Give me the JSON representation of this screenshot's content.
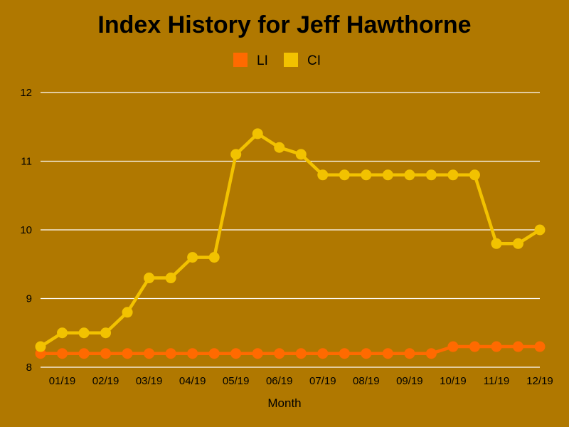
{
  "chart_data": {
    "type": "line",
    "title": "Index History for Jeff Hawthorne",
    "xlabel": "Month",
    "ylabel": "",
    "ylim": [
      8,
      12
    ],
    "yticks": [
      "8",
      "9",
      "10",
      "11",
      "12"
    ],
    "xtick_labels": [
      "01/19",
      "02/19",
      "03/19",
      "04/19",
      "05/19",
      "06/19",
      "07/19",
      "08/19",
      "09/19",
      "10/19",
      "11/19",
      "12/19"
    ],
    "x_count": 24,
    "grid": true,
    "legend_position": "top",
    "series": [
      {
        "name": "LI",
        "color": "#FF6A00",
        "values": [
          8.2,
          8.2,
          8.2,
          8.2,
          8.2,
          8.2,
          8.2,
          8.2,
          8.2,
          8.2,
          8.2,
          8.2,
          8.2,
          8.2,
          8.2,
          8.2,
          8.2,
          8.2,
          8.2,
          8.3,
          8.3,
          8.3,
          8.3,
          8.3
        ]
      },
      {
        "name": "CI",
        "color": "#F2C200",
        "values": [
          8.3,
          8.5,
          8.5,
          8.5,
          8.8,
          9.3,
          9.3,
          9.6,
          9.6,
          11.1,
          11.4,
          11.2,
          11.1,
          10.8,
          10.8,
          10.8,
          10.8,
          10.8,
          10.8,
          10.8,
          10.8,
          9.8,
          9.8,
          10.0
        ]
      }
    ]
  }
}
